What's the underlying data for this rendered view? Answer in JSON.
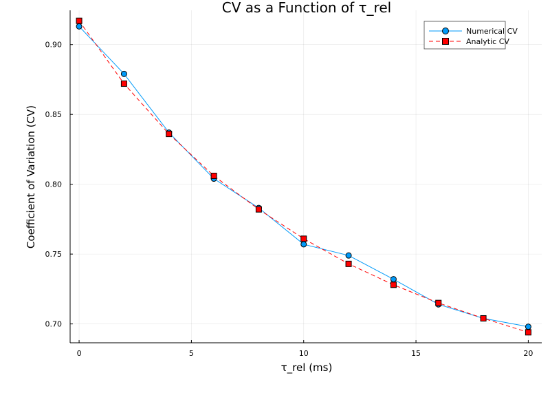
{
  "chart_data": {
    "type": "line",
    "title": "CV as a Function of τ_rel",
    "xlabel": "τ_rel (ms)",
    "ylabel": "Coefficient of Variation (CV)",
    "xlim": [
      -0.4,
      20.6
    ],
    "ylim": [
      0.6865,
      0.9245
    ],
    "x_ticks": [
      0,
      5,
      10,
      15,
      20
    ],
    "x_tick_labels": [
      "0",
      "5",
      "10",
      "15",
      "20"
    ],
    "y_ticks": [
      0.7,
      0.75,
      0.8,
      0.85,
      0.9
    ],
    "y_tick_labels": [
      "0.70",
      "0.75",
      "0.80",
      "0.85",
      "0.90"
    ],
    "grid": true,
    "legend_position": "top-right",
    "x": [
      0,
      2,
      4,
      6,
      8,
      10,
      12,
      14,
      16,
      18,
      20
    ],
    "series": [
      {
        "name": "Numerical CV",
        "values": [
          0.913,
          0.879,
          0.837,
          0.804,
          0.783,
          0.757,
          0.749,
          0.732,
          0.714,
          0.704,
          0.698
        ],
        "color": "#009af9",
        "line_style": "solid",
        "marker": "circle"
      },
      {
        "name": "Analytic CV",
        "values": [
          0.917,
          0.872,
          0.836,
          0.806,
          0.782,
          0.761,
          0.743,
          0.728,
          0.715,
          0.704,
          0.694
        ],
        "color": "#ff0000",
        "line_style": "dashed",
        "marker": "square"
      }
    ]
  }
}
